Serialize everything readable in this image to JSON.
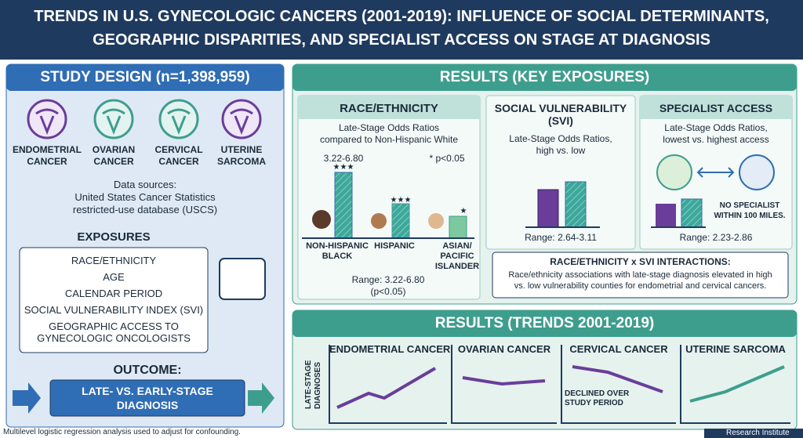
{
  "header": {
    "title_lines": [
      "TRENDS IN U.S. GYNECOLOGIC CANCERS (2001-2019): INFLUENCE OF SOCIAL DETERMINANTS,",
      "GEOGRAPHIC DISPARITIES, AND SPECIALIST ACCESS ON STAGE AT DIAGNOSIS"
    ]
  },
  "study_design": {
    "title": "STUDY DESIGN (n=1,398,959)",
    "cancers": [
      [
        "ENDOMETRIAL",
        "CANCER"
      ],
      [
        "OVARIAN",
        "CANCER"
      ],
      [
        "CERVICAL",
        "CANCER"
      ],
      [
        "UTERINE",
        "SARCOMA"
      ]
    ],
    "data_sources": [
      "Data sources:",
      "United States Cancer Statistics",
      "restricted-use database (USCS)"
    ],
    "exposures_title": "EXPOSURES",
    "exposures": [
      "RACE/ETHNICITY",
      "AGE",
      "CALENDAR PERIOD",
      "SOCIAL VULNERABILITY INDEX (SVI)",
      "GEOGRAPHIC ACCESS TO",
      "GYNECOLOGIC ONCOLOGISTS"
    ],
    "outcome_title": "OUTCOME:",
    "outcome": [
      "LATE- VS. EARLY-STAGE",
      "DIAGNOSIS"
    ]
  },
  "results": {
    "title": "RESULTS (KEY EXPOSURES)",
    "race": {
      "title": "RACE/ETHNICITY",
      "subtitle": [
        "Late-Stage Odds Ratios",
        "compared to Non-Hispanic White"
      ],
      "top_label": "3.22-6.80",
      "note": "* p<0.05",
      "stars": [
        "★★★",
        "★★★",
        "★"
      ],
      "groups": [
        [
          "NON-HISPANIC",
          "BLACK"
        ],
        [
          "HISPANIC"
        ],
        [
          "ASIAN/",
          "PACIFIC",
          "ISLANDER"
        ]
      ],
      "range": [
        "Range: 3.22-6.80",
        "(p<0.05)"
      ]
    },
    "svi": {
      "title": [
        "SOCIAL VULNERABILITY",
        "(SVI)"
      ],
      "subtitle": [
        "Late-Stage Odds Ratios,",
        "high vs. low"
      ],
      "range": "Range: 2.64-3.11"
    },
    "specialist": {
      "title": "SPECIALIST ACCESS",
      "subtitle": [
        "Late-Stage Odds Ratios,",
        "lowest vs. highest access"
      ],
      "annotation": [
        "NO SPECIALIST",
        "WITHIN 100 MILES."
      ],
      "range": "Range: 2.23-2.86"
    },
    "interactions": {
      "title": "RACE/ETHNICITY x SVI INTERACTIONS:",
      "text": [
        "Race/ethnicity associations with late-stage diagnosis elevated in high",
        "vs. low vulnerability counties for endometrial and cervical cancers."
      ]
    }
  },
  "trends": {
    "title": "RESULTS (TRENDS 2001-2019)",
    "y_label": [
      "LATE-STAGE",
      "DIAGNOSES"
    ],
    "panels": [
      "ENDOMETRIAL CANCER",
      "OVARIAN CANCER",
      "CERVICAL CANCER",
      "UTERINE SARCOMA"
    ],
    "annotation": [
      "DECLINED OVER",
      "STUDY PERIOD"
    ]
  },
  "footer": {
    "note": "Multilevel logistic regression analysis used to adjust for confounding.",
    "brand": "Research Institute"
  }
}
